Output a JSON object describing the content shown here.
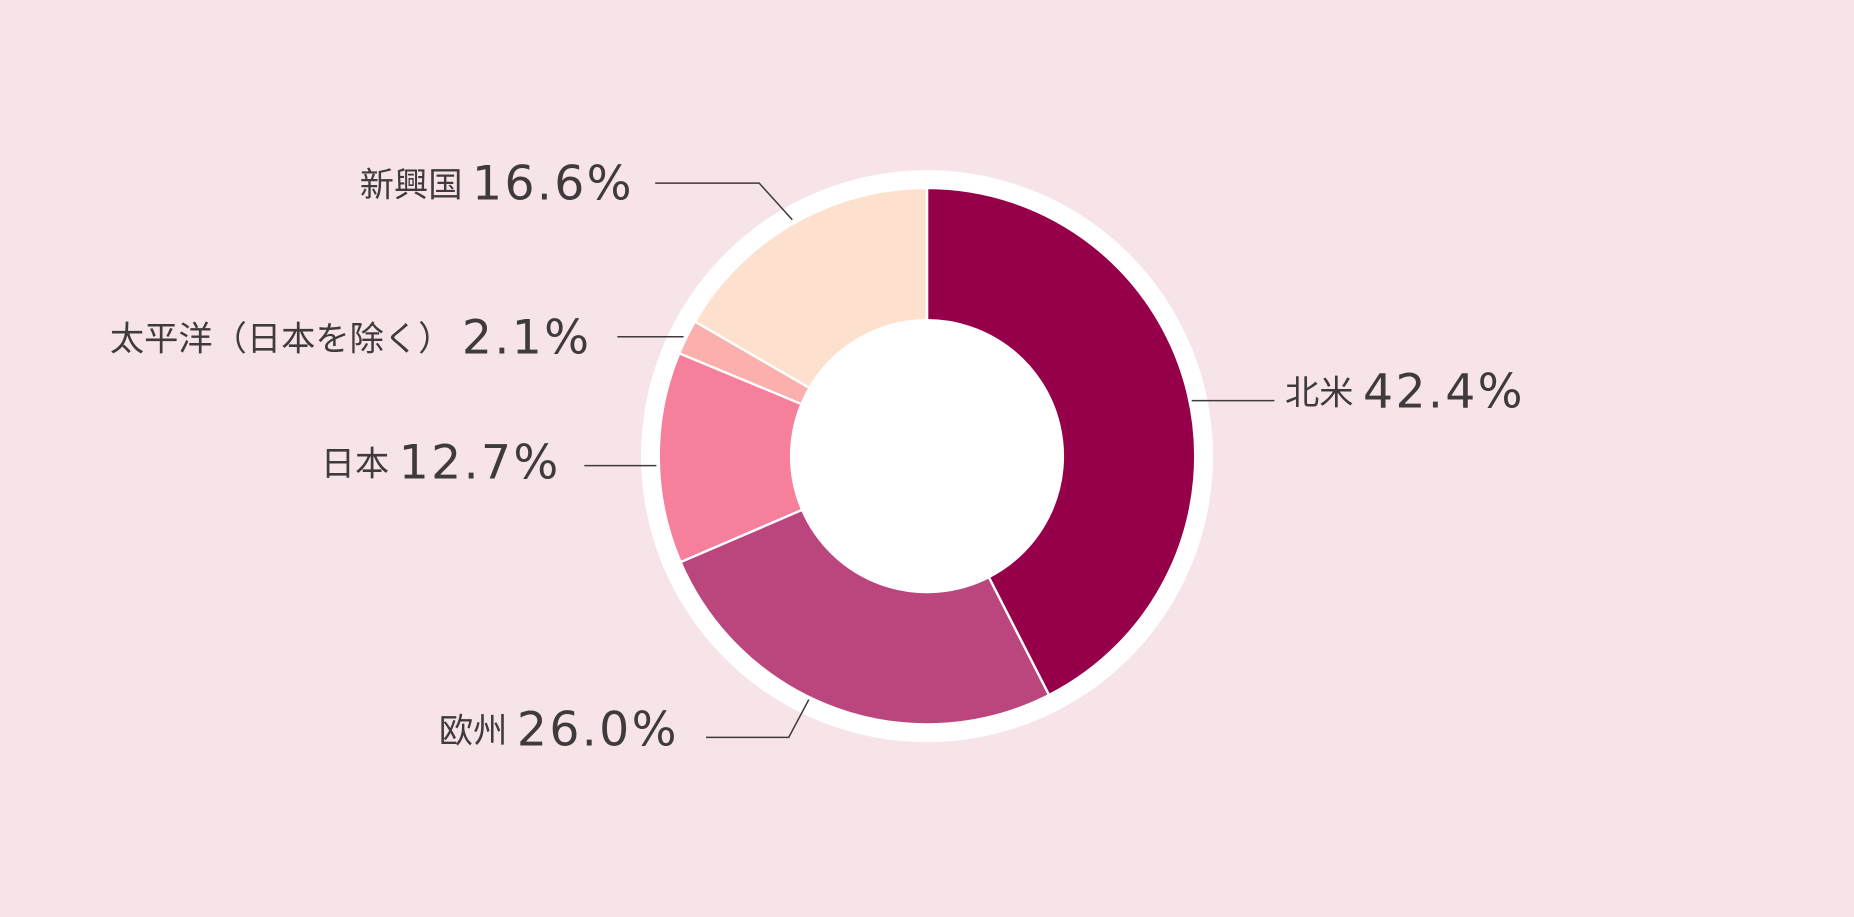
{
  "chart_data": {
    "type": "donut",
    "categories": [
      "北米",
      "欧州",
      "日本",
      "太平洋（日本を除く）",
      "新興国"
    ],
    "values": [
      42.4,
      26.0,
      12.7,
      2.1,
      16.6
    ],
    "value_labels": [
      "42.4%",
      "26.0%",
      "12.7%",
      "2.1%",
      "16.6%"
    ],
    "colors": [
      "#96004b",
      "#bb467e",
      "#f67f9b",
      "#fcb0ad",
      "#fde0cd"
    ]
  }
}
